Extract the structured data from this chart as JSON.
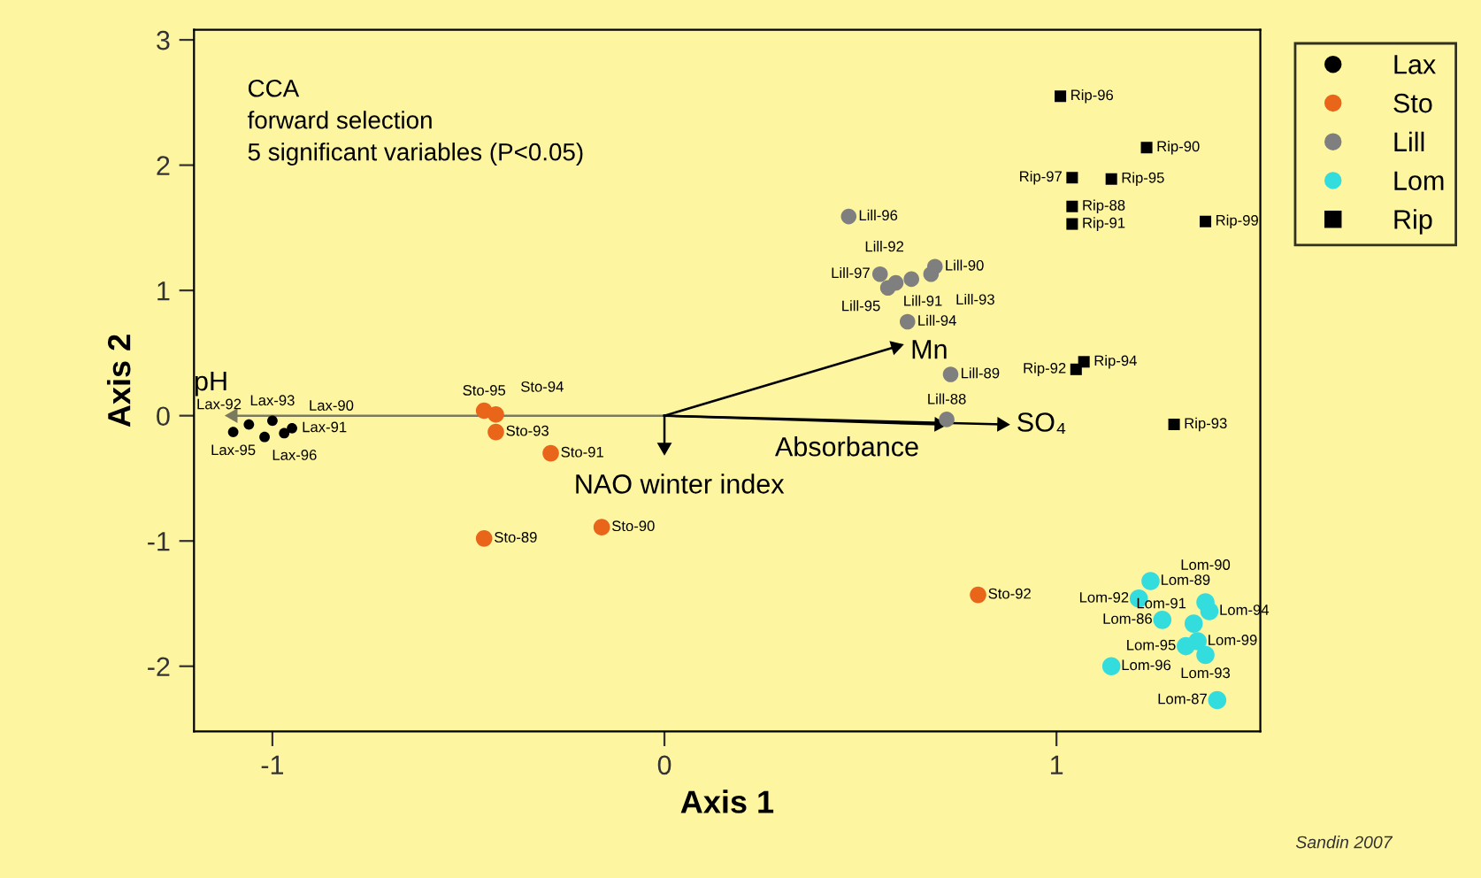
{
  "chart_data": {
    "type": "scatter",
    "xlabel": "Axis 1",
    "ylabel": "Axis 2",
    "xlim": [
      -1.2,
      1.52
    ],
    "ylim": [
      -2.52,
      3.08
    ],
    "xticks": [
      -1,
      0,
      1
    ],
    "yticks": [
      -2,
      -1,
      0,
      1,
      2,
      3
    ],
    "grid": false,
    "legend": "right",
    "annotations": [
      "CCA\nforward selection\n5 significant variables (P<0.05)",
      "Sandin 2007",
      {
        "text": "pH",
        "x": -1.1,
        "y": 0.0
      },
      {
        "text": "Mn",
        "x": 0.59,
        "y": 0.55
      },
      {
        "text": "SO₄",
        "x": 0.86,
        "y": -0.07
      },
      {
        "text": "Absorbance",
        "x": 0.7,
        "y": -0.07
      },
      {
        "text": "NAO winter index",
        "x": 0.0,
        "y": -0.25
      }
    ],
    "series": [
      {
        "name": "Lax",
        "color": "#000000",
        "marker": "circle",
        "x": [
          -1.1,
          -1.02,
          -1.06,
          -1.0,
          -0.95,
          -0.97
        ],
        "values": [
          -0.13,
          -0.17,
          -0.07,
          -0.04,
          -0.1,
          -0.14
        ],
        "value_labels": [
          "Lax-95",
          "Lax-96",
          "Lax-92",
          "Lax-93",
          "Lax-91",
          "Lax-90"
        ]
      },
      {
        "name": "Sto",
        "color": "#e8651a",
        "marker": "circle",
        "x": [
          -0.46,
          -0.43,
          -0.43,
          -0.29,
          -0.46,
          -0.16,
          0.8
        ],
        "values": [
          0.04,
          0.01,
          -0.13,
          -0.3,
          -0.98,
          -0.89,
          -1.43
        ],
        "value_labels": [
          "Sto-95",
          "Sto-94",
          "Sto-93",
          "Sto-91",
          "Sto-89",
          "Sto-90",
          "Sto-92"
        ]
      },
      {
        "name": "Lill",
        "color": "#7f7f7f",
        "marker": "circle",
        "x": [
          0.47,
          0.55,
          0.57,
          0.59,
          0.63,
          0.69,
          0.68,
          0.62,
          0.73,
          0.72
        ],
        "values": [
          1.59,
          1.13,
          1.02,
          1.06,
          1.09,
          1.19,
          1.13,
          0.75,
          0.33,
          -0.03
        ],
        "value_labels": [
          "Lill-96",
          "Lill-97",
          "Lill-95",
          "Lill-91",
          "Lill-92",
          "Lill-90",
          "Lill-93",
          "Lill-94",
          "Lill-89",
          "Lill-88"
        ]
      },
      {
        "name": "Lom",
        "color": "#33dddd",
        "marker": "circle",
        "x": [
          1.24,
          1.21,
          1.38,
          1.39,
          1.27,
          1.35,
          1.36,
          1.33,
          1.38,
          1.14,
          1.41
        ],
        "values": [
          -1.32,
          -1.46,
          -1.49,
          -1.56,
          -1.63,
          -1.66,
          -1.8,
          -1.84,
          -1.91,
          -2.0,
          -2.27
        ],
        "value_labels": [
          "Lom-89",
          "Lom-92",
          "Lom-90",
          "Lom-94",
          "Lom-86",
          "Lom-91",
          "Lom-99",
          "Lom-95",
          "Lom-93",
          "Lom-96",
          "Lom-87"
        ]
      },
      {
        "name": "Rip",
        "color": "#000000",
        "marker": "square",
        "x": [
          1.01,
          1.23,
          1.04,
          1.14,
          1.04,
          1.04,
          1.38,
          1.05,
          1.07,
          1.3
        ],
        "values": [
          2.55,
          2.14,
          1.9,
          1.89,
          1.67,
          1.53,
          1.55,
          0.37,
          0.43,
          -0.07
        ],
        "value_labels": [
          "Rip-96",
          "Rip-90",
          "Rip-97",
          "Rip-95",
          "Rip-88",
          "Rip-91",
          "Rip-99",
          "Rip-92",
          "Rip-94",
          "Rip-93"
        ]
      },
      {
        "type": "line",
        "color": "#7a7a5e",
        "marker": "triangle",
        "x": [
          0,
          -1.1
        ],
        "values": [
          0,
          0.0
        ]
      },
      {
        "type": "line",
        "color": "#000000",
        "marker": "triangle",
        "x": [
          0,
          0.59
        ],
        "values": [
          0,
          0.55
        ]
      },
      {
        "type": "line",
        "color": "#000000",
        "marker": "triangle",
        "x": [
          0,
          0.86
        ],
        "values": [
          0,
          -0.07
        ]
      },
      {
        "type": "line",
        "color": "#000000",
        "marker": "triangle",
        "x": [
          0,
          0.7
        ],
        "values": [
          0,
          -0.07
        ]
      },
      {
        "type": "line",
        "color": "#000000",
        "marker": "triangle",
        "x": [
          0,
          0.0
        ],
        "values": [
          0,
          -0.25
        ]
      }
    ]
  }
}
